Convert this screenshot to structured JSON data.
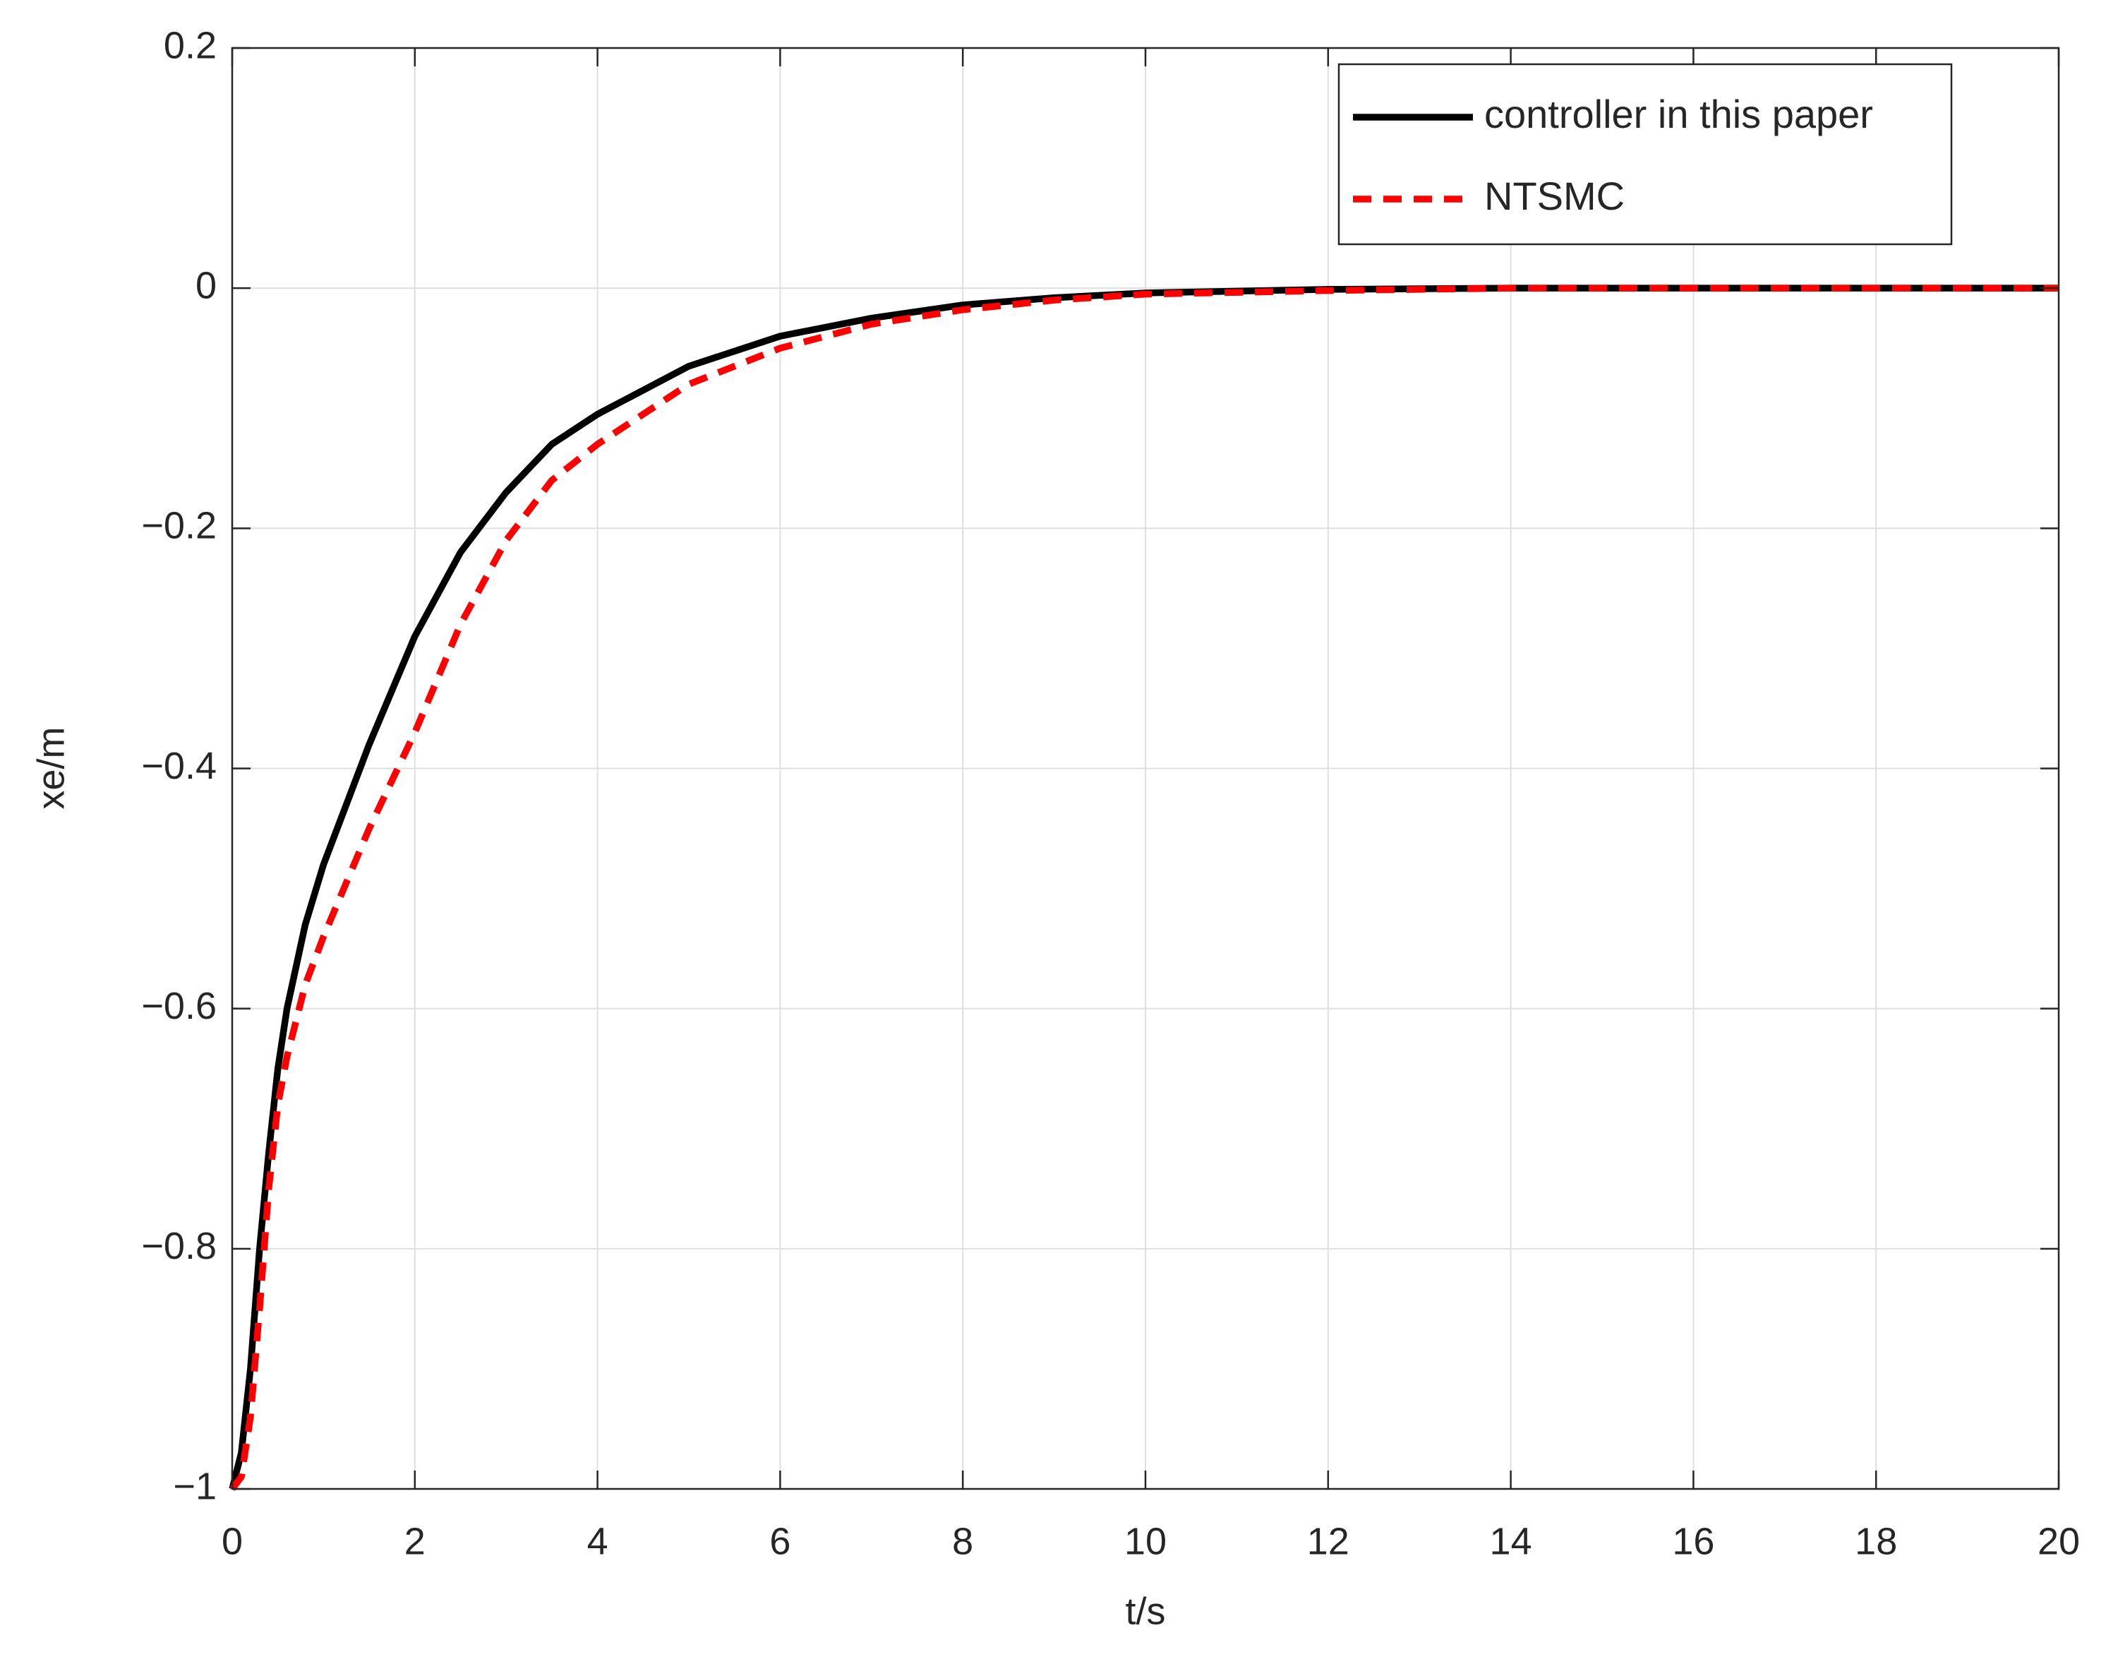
{
  "chart_data": {
    "type": "line",
    "x_label": "t/s",
    "y_label": "xe/m",
    "x": [
      0,
      0.1,
      0.2,
      0.3,
      0.4,
      0.5,
      0.6,
      0.8,
      1,
      1.5,
      2,
      2.5,
      3,
      3.5,
      4,
      5,
      6,
      7,
      8,
      9,
      10,
      12,
      14,
      16,
      20
    ],
    "series": [
      {
        "name": "controller in this paper",
        "color": "#000000",
        "line_style": "solid",
        "values": [
          -1,
          -0.97,
          -0.9,
          -0.8,
          -0.72,
          -0.65,
          -0.6,
          -0.53,
          -0.48,
          -0.38,
          -0.29,
          -0.22,
          -0.17,
          -0.13,
          -0.105,
          -0.065,
          -0.04,
          -0.025,
          -0.014,
          -0.008,
          -0.004,
          -0.001,
          0,
          0,
          0
        ]
      },
      {
        "name": "NTSMC",
        "color": "#ff0000",
        "line_style": "dashed",
        "values": [
          -1,
          -0.99,
          -0.94,
          -0.85,
          -0.75,
          -0.68,
          -0.64,
          -0.58,
          -0.54,
          -0.45,
          -0.37,
          -0.28,
          -0.21,
          -0.16,
          -0.13,
          -0.08,
          -0.05,
          -0.03,
          -0.018,
          -0.01,
          -0.005,
          -0.002,
          0,
          0,
          0
        ]
      }
    ],
    "xlim": [
      0,
      20
    ],
    "xticks": [
      0,
      2,
      4,
      6,
      8,
      10,
      12,
      14,
      16,
      18,
      20
    ],
    "ylim": [
      -1,
      0.2
    ],
    "yticks": [
      {
        "value": -1,
        "label": "−1"
      },
      {
        "value": -0.8,
        "label": "−0.8"
      },
      {
        "value": -0.6,
        "label": "−0.6"
      },
      {
        "value": -0.4,
        "label": "−0.4"
      },
      {
        "value": -0.2,
        "label": "−0.2"
      },
      0,
      0.2
    ],
    "grid": true,
    "legend_loc": "northeast"
  }
}
